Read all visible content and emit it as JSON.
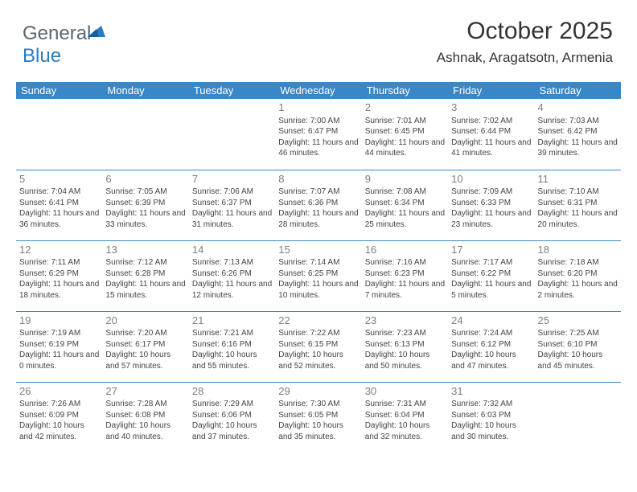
{
  "logo": {
    "part1": "General",
    "part2": "Blue"
  },
  "header": {
    "month_title": "October 2025",
    "location": "Ashnak, Aragatsotn, Armenia"
  },
  "style": {
    "header_bg": "#3a87c7",
    "header_fg": "#ffffff",
    "row_border": "#3a87c7",
    "daynum_color": "#7a7f85",
    "text_color": "#444444",
    "logo_gray": "#5a6670",
    "logo_blue": "#2b7bbd",
    "title_fontsize": 30,
    "location_fontsize": 17,
    "dayheader_fontsize": 13,
    "cell_fontsize": 10
  },
  "day_headers": [
    "Sunday",
    "Monday",
    "Tuesday",
    "Wednesday",
    "Thursday",
    "Friday",
    "Saturday"
  ],
  "weeks": [
    [
      null,
      null,
      null,
      {
        "n": "1",
        "sr": "7:00 AM",
        "ss": "6:47 PM",
        "dl": "11 hours and 46 minutes."
      },
      {
        "n": "2",
        "sr": "7:01 AM",
        "ss": "6:45 PM",
        "dl": "11 hours and 44 minutes."
      },
      {
        "n": "3",
        "sr": "7:02 AM",
        "ss": "6:44 PM",
        "dl": "11 hours and 41 minutes."
      },
      {
        "n": "4",
        "sr": "7:03 AM",
        "ss": "6:42 PM",
        "dl": "11 hours and 39 minutes."
      }
    ],
    [
      {
        "n": "5",
        "sr": "7:04 AM",
        "ss": "6:41 PM",
        "dl": "11 hours and 36 minutes."
      },
      {
        "n": "6",
        "sr": "7:05 AM",
        "ss": "6:39 PM",
        "dl": "11 hours and 33 minutes."
      },
      {
        "n": "7",
        "sr": "7:06 AM",
        "ss": "6:37 PM",
        "dl": "11 hours and 31 minutes."
      },
      {
        "n": "8",
        "sr": "7:07 AM",
        "ss": "6:36 PM",
        "dl": "11 hours and 28 minutes."
      },
      {
        "n": "9",
        "sr": "7:08 AM",
        "ss": "6:34 PM",
        "dl": "11 hours and 25 minutes."
      },
      {
        "n": "10",
        "sr": "7:09 AM",
        "ss": "6:33 PM",
        "dl": "11 hours and 23 minutes."
      },
      {
        "n": "11",
        "sr": "7:10 AM",
        "ss": "6:31 PM",
        "dl": "11 hours and 20 minutes."
      }
    ],
    [
      {
        "n": "12",
        "sr": "7:11 AM",
        "ss": "6:29 PM",
        "dl": "11 hours and 18 minutes."
      },
      {
        "n": "13",
        "sr": "7:12 AM",
        "ss": "6:28 PM",
        "dl": "11 hours and 15 minutes."
      },
      {
        "n": "14",
        "sr": "7:13 AM",
        "ss": "6:26 PM",
        "dl": "11 hours and 12 minutes."
      },
      {
        "n": "15",
        "sr": "7:14 AM",
        "ss": "6:25 PM",
        "dl": "11 hours and 10 minutes."
      },
      {
        "n": "16",
        "sr": "7:16 AM",
        "ss": "6:23 PM",
        "dl": "11 hours and 7 minutes."
      },
      {
        "n": "17",
        "sr": "7:17 AM",
        "ss": "6:22 PM",
        "dl": "11 hours and 5 minutes."
      },
      {
        "n": "18",
        "sr": "7:18 AM",
        "ss": "6:20 PM",
        "dl": "11 hours and 2 minutes."
      }
    ],
    [
      {
        "n": "19",
        "sr": "7:19 AM",
        "ss": "6:19 PM",
        "dl": "11 hours and 0 minutes."
      },
      {
        "n": "20",
        "sr": "7:20 AM",
        "ss": "6:17 PM",
        "dl": "10 hours and 57 minutes."
      },
      {
        "n": "21",
        "sr": "7:21 AM",
        "ss": "6:16 PM",
        "dl": "10 hours and 55 minutes."
      },
      {
        "n": "22",
        "sr": "7:22 AM",
        "ss": "6:15 PM",
        "dl": "10 hours and 52 minutes."
      },
      {
        "n": "23",
        "sr": "7:23 AM",
        "ss": "6:13 PM",
        "dl": "10 hours and 50 minutes."
      },
      {
        "n": "24",
        "sr": "7:24 AM",
        "ss": "6:12 PM",
        "dl": "10 hours and 47 minutes."
      },
      {
        "n": "25",
        "sr": "7:25 AM",
        "ss": "6:10 PM",
        "dl": "10 hours and 45 minutes."
      }
    ],
    [
      {
        "n": "26",
        "sr": "7:26 AM",
        "ss": "6:09 PM",
        "dl": "10 hours and 42 minutes."
      },
      {
        "n": "27",
        "sr": "7:28 AM",
        "ss": "6:08 PM",
        "dl": "10 hours and 40 minutes."
      },
      {
        "n": "28",
        "sr": "7:29 AM",
        "ss": "6:06 PM",
        "dl": "10 hours and 37 minutes."
      },
      {
        "n": "29",
        "sr": "7:30 AM",
        "ss": "6:05 PM",
        "dl": "10 hours and 35 minutes."
      },
      {
        "n": "30",
        "sr": "7:31 AM",
        "ss": "6:04 PM",
        "dl": "10 hours and 32 minutes."
      },
      {
        "n": "31",
        "sr": "7:32 AM",
        "ss": "6:03 PM",
        "dl": "10 hours and 30 minutes."
      },
      null
    ]
  ],
  "labels": {
    "sunrise": "Sunrise: ",
    "sunset": "Sunset: ",
    "daylight": "Daylight: "
  }
}
